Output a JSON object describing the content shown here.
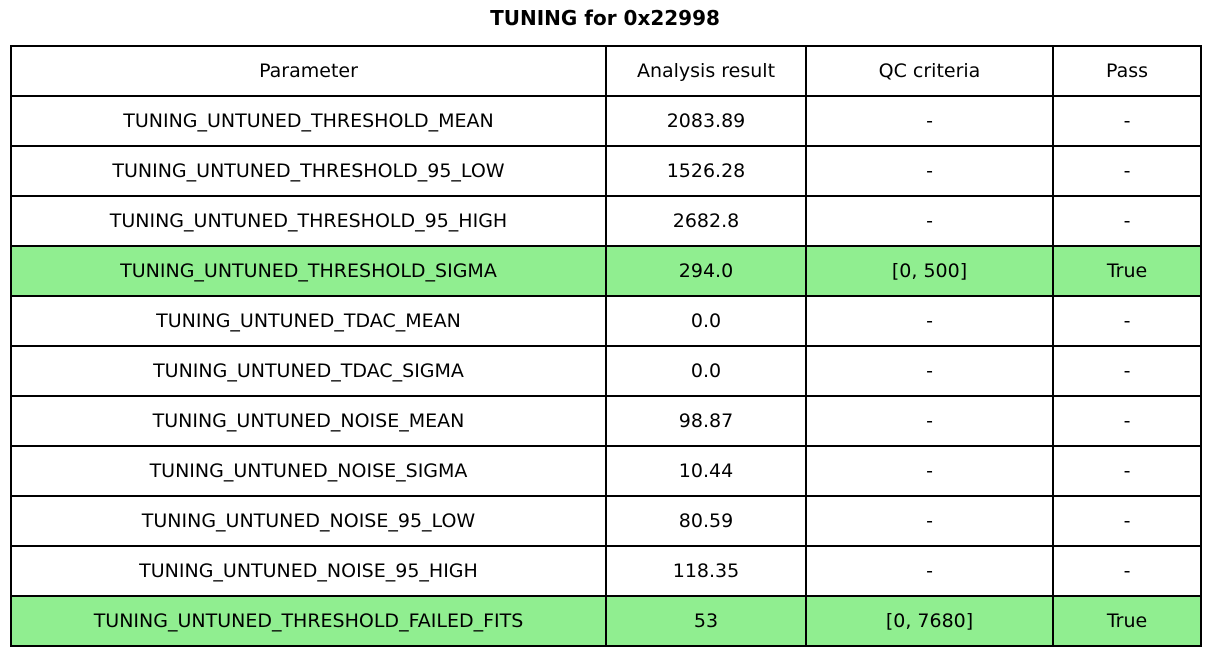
{
  "title": "TUNING for 0x22998",
  "colors": {
    "pass_green": "#90EE90",
    "row_white": "#FFFFFF",
    "border": "#000000"
  },
  "table": {
    "columns": [
      "Parameter",
      "Analysis result",
      "QC criteria",
      "Pass"
    ],
    "rows": [
      {
        "parameter": "TUNING_UNTUNED_THRESHOLD_MEAN",
        "analysis_result": "2083.89",
        "qc_criteria": "-",
        "pass": "-",
        "highlight": false
      },
      {
        "parameter": "TUNING_UNTUNED_THRESHOLD_95_LOW",
        "analysis_result": "1526.28",
        "qc_criteria": "-",
        "pass": "-",
        "highlight": false
      },
      {
        "parameter": "TUNING_UNTUNED_THRESHOLD_95_HIGH",
        "analysis_result": "2682.8",
        "qc_criteria": "-",
        "pass": "-",
        "highlight": false
      },
      {
        "parameter": "TUNING_UNTUNED_THRESHOLD_SIGMA",
        "analysis_result": "294.0",
        "qc_criteria": "[0, 500]",
        "pass": "True",
        "highlight": true
      },
      {
        "parameter": "TUNING_UNTUNED_TDAC_MEAN",
        "analysis_result": "0.0",
        "qc_criteria": "-",
        "pass": "-",
        "highlight": false
      },
      {
        "parameter": "TUNING_UNTUNED_TDAC_SIGMA",
        "analysis_result": "0.0",
        "qc_criteria": "-",
        "pass": "-",
        "highlight": false
      },
      {
        "parameter": "TUNING_UNTUNED_NOISE_MEAN",
        "analysis_result": "98.87",
        "qc_criteria": "-",
        "pass": "-",
        "highlight": false
      },
      {
        "parameter": "TUNING_UNTUNED_NOISE_SIGMA",
        "analysis_result": "10.44",
        "qc_criteria": "-",
        "pass": "-",
        "highlight": false
      },
      {
        "parameter": "TUNING_UNTUNED_NOISE_95_LOW",
        "analysis_result": "80.59",
        "qc_criteria": "-",
        "pass": "-",
        "highlight": false
      },
      {
        "parameter": "TUNING_UNTUNED_NOISE_95_HIGH",
        "analysis_result": "118.35",
        "qc_criteria": "-",
        "pass": "-",
        "highlight": false
      },
      {
        "parameter": "TUNING_UNTUNED_THRESHOLD_FAILED_FITS",
        "analysis_result": "53",
        "qc_criteria": "[0, 7680]",
        "pass": "True",
        "highlight": true
      }
    ]
  },
  "chart_data": {
    "type": "table",
    "title": "TUNING for 0x22998",
    "columns": [
      "Parameter",
      "Analysis result",
      "QC criteria",
      "Pass"
    ],
    "rows": [
      [
        "TUNING_UNTUNED_THRESHOLD_MEAN",
        "2083.89",
        "-",
        "-"
      ],
      [
        "TUNING_UNTUNED_THRESHOLD_95_LOW",
        "1526.28",
        "-",
        "-"
      ],
      [
        "TUNING_UNTUNED_THRESHOLD_95_HIGH",
        "2682.8",
        "-",
        "-"
      ],
      [
        "TUNING_UNTUNED_THRESHOLD_SIGMA",
        "294.0",
        "[0, 500]",
        "True"
      ],
      [
        "TUNING_UNTUNED_TDAC_MEAN",
        "0.0",
        "-",
        "-"
      ],
      [
        "TUNING_UNTUNED_TDAC_SIGMA",
        "0.0",
        "-",
        "-"
      ],
      [
        "TUNING_UNTUNED_NOISE_MEAN",
        "98.87",
        "-",
        "-"
      ],
      [
        "TUNING_UNTUNED_NOISE_SIGMA",
        "10.44",
        "-",
        "-"
      ],
      [
        "TUNING_UNTUNED_NOISE_95_LOW",
        "80.59",
        "-",
        "-"
      ],
      [
        "TUNING_UNTUNED_NOISE_95_HIGH",
        "118.35",
        "-",
        "-"
      ],
      [
        "TUNING_UNTUNED_THRESHOLD_FAILED_FITS",
        "53",
        "[0, 7680]",
        "True"
      ]
    ],
    "highlighted_rows": [
      3,
      10
    ]
  }
}
